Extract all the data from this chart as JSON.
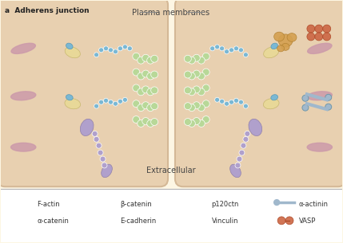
{
  "title": "a  Adherens junction",
  "bg_color": "#fdf6e3",
  "cell_bg": "#f5ead6",
  "cell_border": "#d4b896",
  "plasma_membranes_label": "Plasma membranes",
  "extracellular_label": "Extracellular",
  "legend_items": [
    {
      "label": "F-actin",
      "color": "#d4a0b0",
      "shape": "elongated"
    },
    {
      "label": "α-catenin",
      "color": "#e8d898",
      "shape": "oval_pair"
    },
    {
      "label": "β-catenin",
      "color": "#7ab8d4",
      "shape": "chain"
    },
    {
      "label": "E-cadherin",
      "color": "#a8c878",
      "shape": "chain_green"
    },
    {
      "label": "p120ctn",
      "color": "#b0a0cc",
      "shape": "chain_purple"
    },
    {
      "label": "Vinculin",
      "color": "#d4a050",
      "shape": "blob"
    },
    {
      "label": "α-actinin",
      "color": "#a0b8cc",
      "shape": "rod_circle"
    },
    {
      "label": "VASP",
      "color": "#cc6644",
      "shape": "circles"
    }
  ],
  "colors": {
    "f_actin": "#cc9aaa",
    "alpha_catenin": "#e8d898",
    "beta_catenin": "#7ab8d4",
    "e_cadherin": "#b8d898",
    "p120ctn": "#b0a0cc",
    "vinculin": "#d4a050",
    "alpha_actinin": "#a0b8cc",
    "vasp": "#cc6644",
    "membrane": "#e8d0b0"
  }
}
